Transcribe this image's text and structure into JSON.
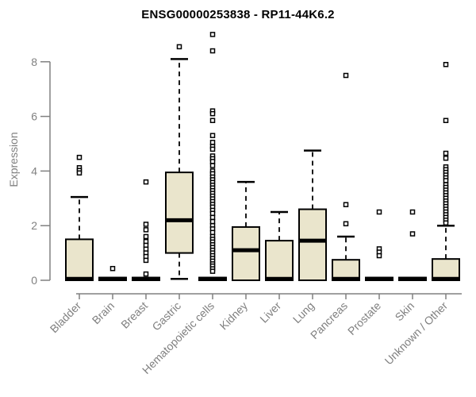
{
  "chart_data": {
    "type": "boxplot",
    "title": "ENSG00000253838 - RP11-44K6.2",
    "ylabel": "Expression",
    "xlabel": "",
    "ylim": [
      0,
      9.2
    ],
    "y_ticks": [
      0,
      2,
      4,
      6,
      8
    ],
    "grid": false,
    "legend": null,
    "categories": [
      "Bladder",
      "Brain",
      "Breast",
      "Gastric",
      "Hematopoietic cells",
      "Kidney",
      "Liver",
      "Lung",
      "Pancreas",
      "Prostate",
      "Skin",
      "Unknown / Other"
    ],
    "series": [
      {
        "name": "Bladder",
        "q1": 0,
        "median": 0.05,
        "q3": 1.5,
        "whisker_low": 0,
        "whisker_high": 3.05,
        "outliers": [
          4.5,
          4.12,
          4.02,
          3.93
        ]
      },
      {
        "name": "Brain",
        "q1": 0,
        "median": 0.05,
        "q3": 0.1,
        "whisker_low": 0,
        "whisker_high": 0.1,
        "outliers": [
          0.43
        ]
      },
      {
        "name": "Breast",
        "q1": 0,
        "median": 0.05,
        "q3": 0.1,
        "whisker_low": 0,
        "whisker_high": 0.1,
        "outliers": [
          3.6,
          2.05,
          1.85,
          1.6,
          1.42,
          1.28,
          1.14,
          1.0,
          0.87,
          0.73,
          0.23
        ]
      },
      {
        "name": "Gastric",
        "q1": 1.0,
        "median": 2.2,
        "q3": 3.95,
        "whisker_low": 0.05,
        "whisker_high": 8.1,
        "outliers": [
          8.55
        ]
      },
      {
        "name": "Hematopoietic cells",
        "q1": 0,
        "median": 0.05,
        "q3": 0.1,
        "whisker_low": 0,
        "whisker_high": 0.1,
        "outliers": [
          9.0,
          8.4,
          6.2,
          6.1,
          5.85,
          5.3,
          5.05,
          4.9,
          4.8,
          4.55,
          4.45,
          4.35,
          4.2,
          4.0,
          3.9,
          3.78,
          3.68,
          3.58,
          3.48,
          3.38,
          3.28,
          3.18,
          3.08,
          2.98,
          2.88,
          2.78,
          2.68,
          2.56,
          2.45,
          2.3,
          2.15,
          2.0,
          1.88,
          1.75,
          1.6,
          1.5,
          1.4,
          1.3,
          1.2,
          1.1,
          1.0,
          0.9,
          0.8,
          0.7,
          0.6,
          0.52,
          0.42,
          0.33
        ]
      },
      {
        "name": "Kidney",
        "q1": 0,
        "median": 1.1,
        "q3": 1.95,
        "whisker_low": 0,
        "whisker_high": 3.6,
        "outliers": []
      },
      {
        "name": "Liver",
        "q1": 0,
        "median": 0.05,
        "q3": 1.45,
        "whisker_low": 0,
        "whisker_high": 2.5,
        "outliers": []
      },
      {
        "name": "Lung",
        "q1": 0,
        "median": 1.45,
        "q3": 2.6,
        "whisker_low": 0,
        "whisker_high": 4.75,
        "outliers": []
      },
      {
        "name": "Pancreas",
        "q1": 0,
        "median": 0.05,
        "q3": 0.75,
        "whisker_low": 0,
        "whisker_high": 1.6,
        "outliers": [
          7.5,
          2.77,
          2.07
        ]
      },
      {
        "name": "Prostate",
        "q1": 0,
        "median": 0.05,
        "q3": 0.1,
        "whisker_low": 0,
        "whisker_high": 0.1,
        "outliers": [
          2.5,
          1.15,
          1.03,
          0.9
        ]
      },
      {
        "name": "Skin",
        "q1": 0,
        "median": 0.05,
        "q3": 0.1,
        "whisker_low": 0,
        "whisker_high": 0.1,
        "outliers": [
          2.5,
          1.7
        ]
      },
      {
        "name": "Unknown / Other",
        "q1": 0,
        "median": 0.05,
        "q3": 0.78,
        "whisker_low": 0,
        "whisker_high": 2.0,
        "outliers": [
          7.9,
          5.85,
          4.65,
          4.47,
          4.15,
          4.05,
          3.95,
          3.85,
          3.75,
          3.65,
          3.5,
          3.4,
          3.3,
          3.2,
          3.1,
          3.0,
          2.9,
          2.8,
          2.7,
          2.6,
          2.5,
          2.4,
          2.3,
          2.2,
          2.1
        ]
      }
    ],
    "colors": {
      "box_fill": "#eae5cc",
      "box_stroke": "#000000",
      "median": "#000000",
      "whisker": "#000000",
      "outlier_stroke": "#000000",
      "outlier_fill": "#ffffff",
      "axis": "#808080",
      "tick_label": "#808080",
      "title": "#000000",
      "background": "#ffffff"
    }
  }
}
